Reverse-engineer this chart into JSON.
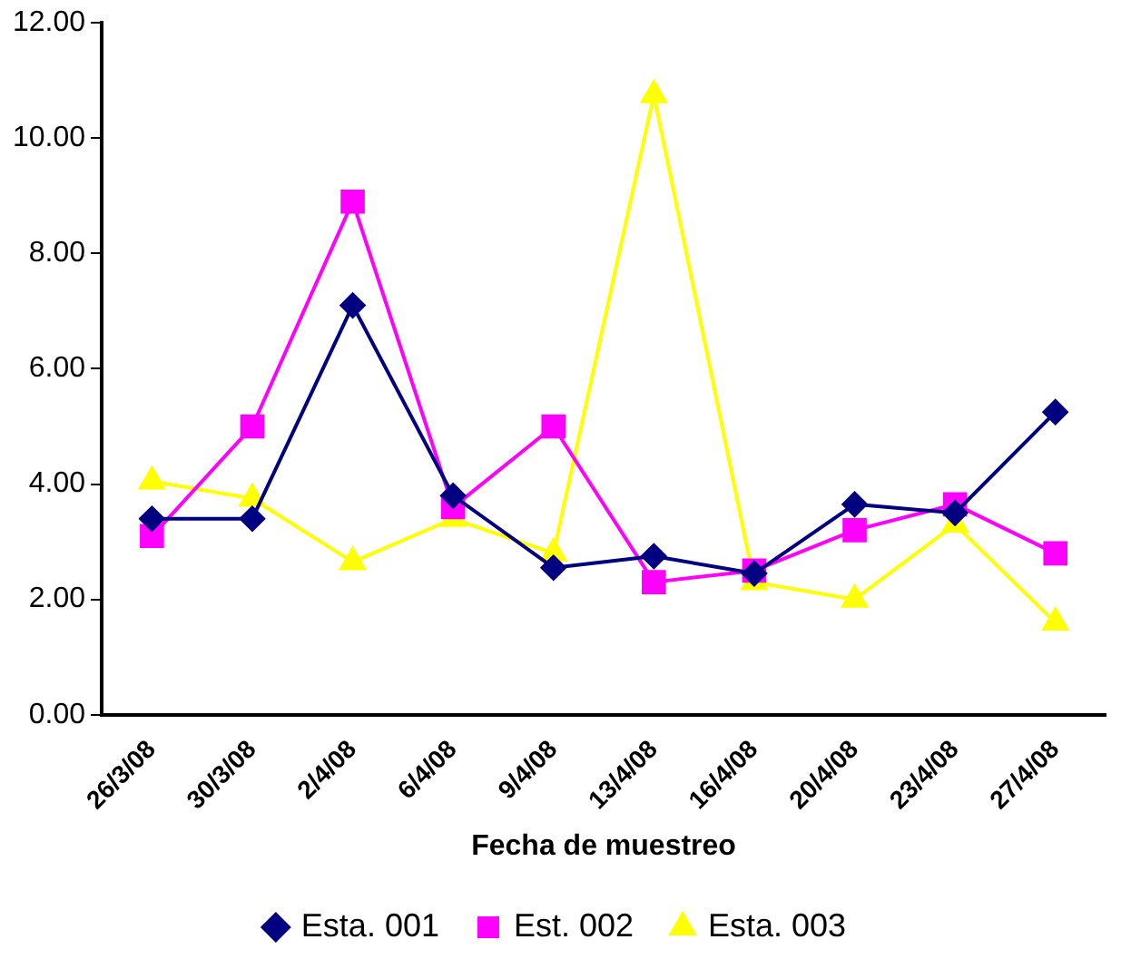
{
  "chart_data": {
    "type": "line",
    "xlabel": "Fecha de muestreo",
    "categories": [
      "26/3/08",
      "30/3/08",
      "2/4/08",
      "6/4/08",
      "9/4/08",
      "13/4/08",
      "16/4/08",
      "20/4/08",
      "23/4/08",
      "27/4/08"
    ],
    "series": [
      {
        "name": "Esta. 001",
        "color": "#000080",
        "marker": "diamond",
        "values": [
          3.4,
          3.4,
          7.1,
          3.8,
          2.55,
          2.75,
          2.45,
          3.65,
          3.5,
          5.25
        ]
      },
      {
        "name": "Est. 002",
        "color": "#ff00ff",
        "marker": "square",
        "values": [
          3.1,
          5.0,
          8.9,
          3.6,
          5.0,
          2.3,
          2.5,
          3.2,
          3.65,
          2.8
        ]
      },
      {
        "name": "Esta. 003",
        "color": "#ffff00",
        "marker": "triangle",
        "values": [
          4.05,
          3.75,
          2.65,
          3.4,
          2.8,
          10.75,
          2.3,
          2.0,
          3.3,
          1.6
        ]
      }
    ],
    "ylim": [
      0,
      12
    ],
    "yticks": [
      {
        "value": 0,
        "label": "0.00"
      },
      {
        "value": 2,
        "label": "2.00"
      },
      {
        "value": 4,
        "label": "4.00"
      },
      {
        "value": 6,
        "label": "6.00"
      },
      {
        "value": 8,
        "label": "8.00"
      },
      {
        "value": 10,
        "label": "10.00"
      },
      {
        "value": 12,
        "label": "12.00"
      }
    ],
    "grid": false,
    "legend": "bottom",
    "line_style": "solid"
  }
}
